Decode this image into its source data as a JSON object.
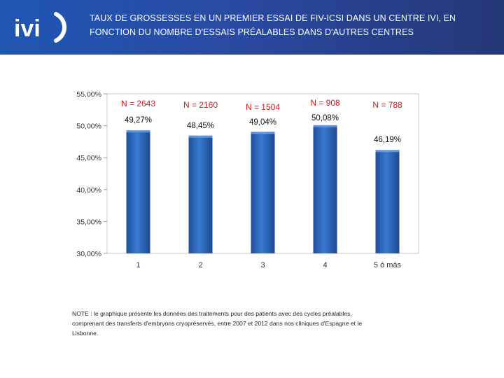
{
  "header": {
    "logo_text": "IVI",
    "title_line1": "TAUX DE GROSSESSES EN UN PREMIER ESSAI DE FIV-ICSI DANS UN CENTRE IVI, EN",
    "title_line2": "FONCTION DU NOMBRE D'ESSAIS PRÉALABLES DANS D'AUTRES CENTRES"
  },
  "colors": {
    "header_bg": "#2a4aa3",
    "bar": "#2c6ac0",
    "n_label": "#cc1a1a"
  },
  "chart_data": {
    "type": "bar",
    "categories": [
      "1",
      "2",
      "3",
      "4",
      "5 ó más"
    ],
    "values": [
      49.27,
      48.45,
      49.04,
      50.08,
      46.19
    ],
    "value_labels": [
      "49,27%",
      "48,45%",
      "49,04%",
      "50,08%",
      "46,19%"
    ],
    "n_labels": [
      "N = 2643",
      "N = 2160",
      "N = 1504",
      "N = 908",
      "N = 788"
    ],
    "yticks": [
      "55,00%",
      "50,00%",
      "45,00%",
      "40,00%",
      "35,00%",
      "30,00%"
    ],
    "ylim": [
      30,
      55
    ],
    "title": "",
    "xlabel": "",
    "ylabel": "",
    "grid": false,
    "legend": "none"
  },
  "note": {
    "line1": "NOTE : le graphique présente les données des traitements pour des patients avec des cycles préalables,",
    "line2": "comprenant des transferts d'embryons cryopréservés, entre 2007 et 2012 dans nos cliniques d'Espagne et le",
    "line3": "Lisbonne."
  }
}
